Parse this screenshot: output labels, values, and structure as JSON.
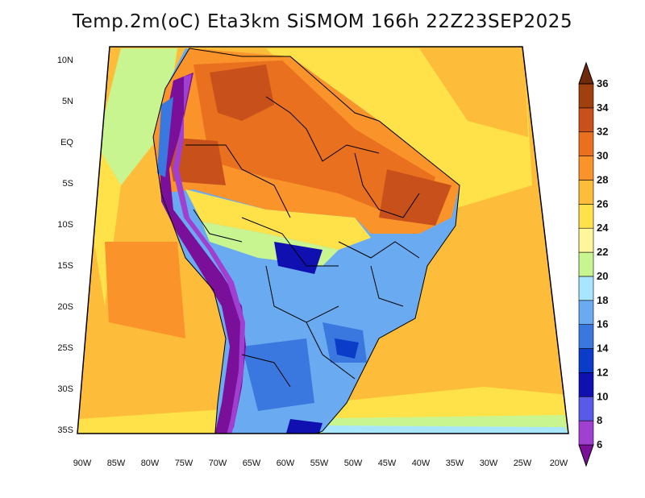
{
  "title": "Temp.2m(oC) Eta3km SiSMOM 166h 22Z23SEP2025",
  "lat_labels": [
    "10N",
    "5N",
    "EQ",
    "5S",
    "10S",
    "15S",
    "20S",
    "25S",
    "30S",
    "35S"
  ],
  "lon_labels": [
    "90W",
    "85W",
    "80W",
    "75W",
    "70W",
    "65W",
    "60W",
    "55W",
    "50W",
    "45W",
    "40W",
    "35W",
    "30W",
    "25W",
    "20W"
  ],
  "colorbar": {
    "labels": [
      "6",
      "8",
      "10",
      "12",
      "14",
      "16",
      "18",
      "20",
      "22",
      "24",
      "26",
      "28",
      "30",
      "32",
      "34",
      "36"
    ],
    "colors": [
      "#7a109a",
      "#a040d0",
      "#5a5ae8",
      "#1010b0",
      "#0a3cc8",
      "#3a78e0",
      "#6aaaf0",
      "#a8e6ff",
      "#c8f590",
      "#fff59a",
      "#ffe24a",
      "#fdbd3a",
      "#f9932a",
      "#e8701e",
      "#c8501a",
      "#a0400f",
      "#6e2a0a"
    ]
  },
  "colors": {
    "ocean": "#fdbd3a",
    "border": "#000000"
  }
}
